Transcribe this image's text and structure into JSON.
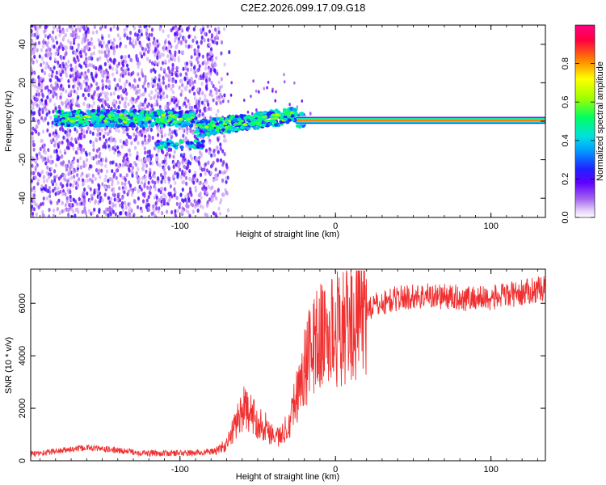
{
  "title": "C2E2.2026.099.17.09.G18",
  "chart_data": [
    {
      "type": "heatmap",
      "title": "C2E2.2026.099.17.09.G18",
      "xlabel": "Height of straight line (km)",
      "ylabel": "Frequency (Hz)",
      "xlim": [
        -196,
        135
      ],
      "ylim": [
        -50,
        50
      ],
      "xticks": [
        -100,
        0,
        100
      ],
      "yticks": [
        -40,
        -20,
        0,
        20,
        40
      ],
      "colorbar": {
        "label": "Normalized spectral amplitude",
        "range": [
          0,
          1
        ],
        "ticks": [
          0.0,
          0.2,
          0.4,
          0.6,
          0.8
        ],
        "colors": [
          "#ffffff",
          "#c8a0f0",
          "#8000ff",
          "#2020ff",
          "#00e0ff",
          "#00ff60",
          "#a0ff00",
          "#ffff00",
          "#ff8000",
          "#ff0040",
          "#ff0080"
        ]
      },
      "features": {
        "noise_region_x": [
          -196,
          -76
        ],
        "center_line_y": 0.5,
        "center_line_start_x": -25,
        "center_line_end_x": 135
      }
    },
    {
      "type": "line",
      "xlabel": "Height of straight line (km)",
      "ylabel": "SNR (10 * v/v)",
      "xlim": [
        -196,
        135
      ],
      "ylim": [
        0,
        7300
      ],
      "xticks": [
        -100,
        0,
        100
      ],
      "yticks": [
        0,
        2000,
        4000,
        6000
      ],
      "series": [
        {
          "name": "SNR",
          "color": "#f03030",
          "x": [
            -196,
            -160,
            -120,
            -90,
            -78,
            -70,
            -65,
            -60,
            -55,
            -50,
            -45,
            -40,
            -35,
            -30,
            -25,
            -20,
            -15,
            -10,
            -5,
            0,
            10,
            20,
            30,
            40,
            60,
            80,
            100,
            120,
            135
          ],
          "y": [
            250,
            500,
            280,
            300,
            350,
            600,
            1300,
            2000,
            1800,
            1500,
            1300,
            1000,
            900,
            1500,
            2500,
            3500,
            4400,
            4700,
            4800,
            5000,
            5300,
            5800,
            6000,
            6200,
            6300,
            6200,
            6200,
            6400,
            6600
          ]
        }
      ]
    }
  ]
}
